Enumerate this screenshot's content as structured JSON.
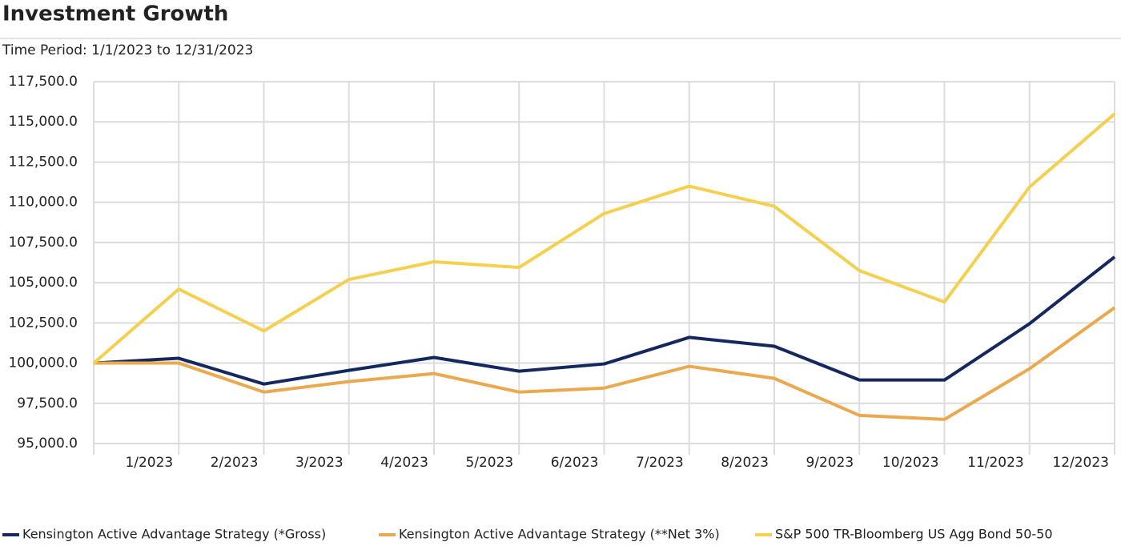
{
  "chart_data": {
    "type": "line",
    "title": "Investment Growth",
    "subtitle": "Time Period: 1/1/2023 to 12/31/2023",
    "categories": [
      null,
      "1/2023",
      "2/2023",
      "3/2023",
      "4/2023",
      "5/2023",
      "6/2023",
      "7/2023",
      "8/2023",
      "9/2023",
      "10/2023",
      "11/2023",
      "12/2023"
    ],
    "series": [
      {
        "name": "Kensington Active Advantage Strategy (*Gross)",
        "color": "#14285f",
        "values": [
          100000,
          100300,
          98700,
          99550,
          100350,
          99500,
          99950,
          101600,
          101050,
          98950,
          98950,
          102450,
          106600
        ]
      },
      {
        "name": "Kensington Active Advantage Strategy (**Net 3%)",
        "color": "#eba94f",
        "values": [
          100000,
          100000,
          98200,
          98850,
          99350,
          98200,
          98450,
          99800,
          99050,
          96750,
          96500,
          99650,
          103450
        ]
      },
      {
        "name": "S&P 500 TR-Bloomberg US Agg Bond 50-50",
        "color": "#f5d04f",
        "values": [
          100000,
          104600,
          102000,
          105200,
          106300,
          105950,
          109300,
          111000,
          109750,
          105750,
          103800,
          110950,
          115500
        ]
      }
    ],
    "ylim": [
      95000,
      117500
    ],
    "yticks": [
      {
        "value": 95000,
        "label": "95,000.0"
      },
      {
        "value": 97500,
        "label": "97,500.0"
      },
      {
        "value": 100000,
        "label": "100,000.0"
      },
      {
        "value": 102500,
        "label": "102,500.0"
      },
      {
        "value": 105000,
        "label": "105,000.0"
      },
      {
        "value": 107500,
        "label": "107,500.0"
      },
      {
        "value": 110000,
        "label": "110,000.0"
      },
      {
        "value": 112500,
        "label": "112,500.0"
      },
      {
        "value": 115000,
        "label": "115,000.0"
      },
      {
        "value": 117500,
        "label": "117,500.0"
      }
    ],
    "grid": true,
    "legend": "bottom"
  }
}
